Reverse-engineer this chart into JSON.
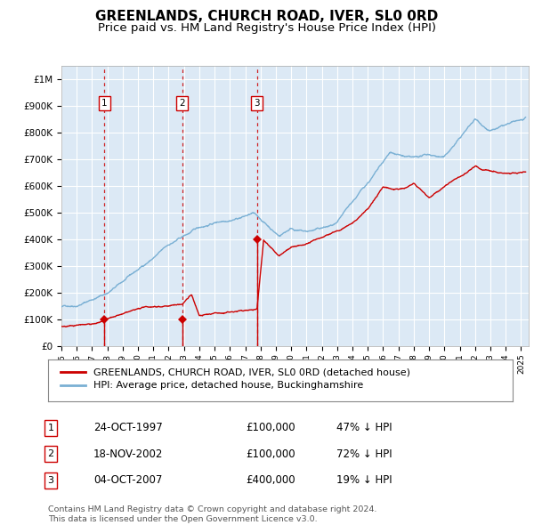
{
  "title": "GREENLANDS, CHURCH ROAD, IVER, SL0 0RD",
  "subtitle": "Price paid vs. HM Land Registry's House Price Index (HPI)",
  "legend_red": "GREENLANDS, CHURCH ROAD, IVER, SL0 0RD (detached house)",
  "legend_blue": "HPI: Average price, detached house, Buckinghamshire",
  "footer": "Contains HM Land Registry data © Crown copyright and database right 2024.\nThis data is licensed under the Open Government Licence v3.0.",
  "transactions": [
    {
      "num": 1,
      "date": "24-OCT-1997",
      "price": 100000,
      "price_str": "£100,000",
      "hpi_pct": "47% ↓ HPI",
      "x_year": 1997.81
    },
    {
      "num": 2,
      "date": "18-NOV-2002",
      "price": 100000,
      "price_str": "£100,000",
      "hpi_pct": "72% ↓ HPI",
      "x_year": 2002.88
    },
    {
      "num": 3,
      "date": "04-OCT-2007",
      "price": 400000,
      "price_str": "£400,000",
      "hpi_pct": "19% ↓ HPI",
      "x_year": 2007.76
    }
  ],
  "ylim": [
    0,
    1050000
  ],
  "xlim_start": 1995.0,
  "xlim_end": 2025.5,
  "background_color": "#dce9f5",
  "red_color": "#cc0000",
  "blue_color": "#7ab0d4",
  "grid_color": "#ffffff",
  "title_fontsize": 11,
  "subtitle_fontsize": 9.5
}
